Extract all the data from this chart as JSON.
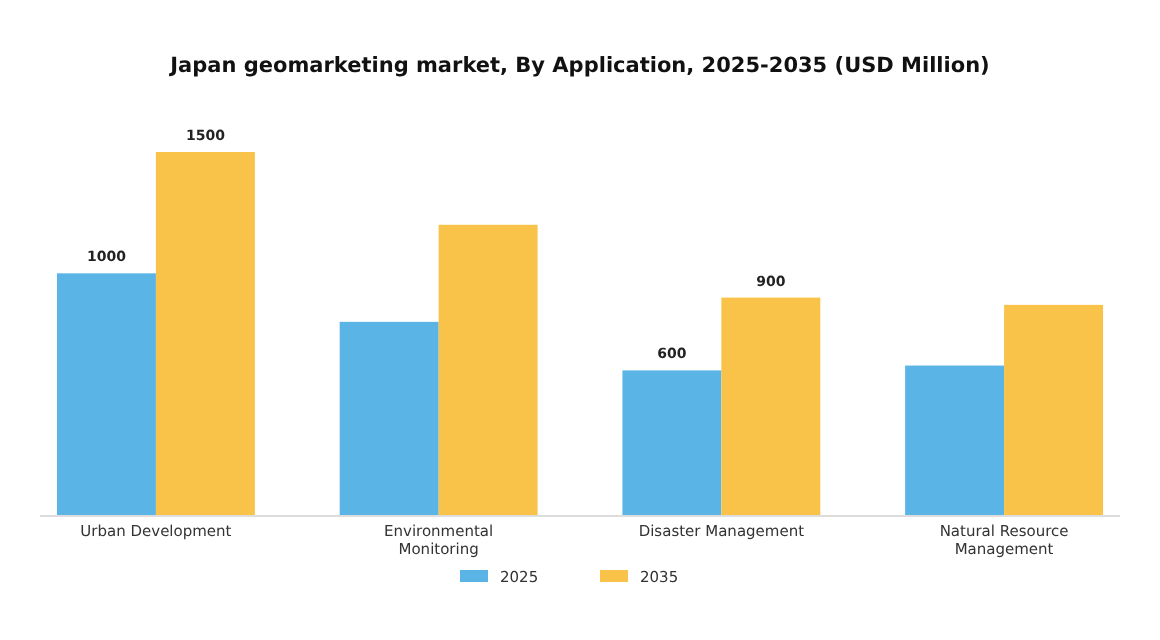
{
  "chart_data": {
    "type": "bar",
    "title": "Japan geomarketing market, By Application, 2025-2035 (USD Million)",
    "categories": [
      "Urban Development",
      "Environmental Monitoring",
      "Disaster Management",
      "Natural Resource Management"
    ],
    "series": [
      {
        "name": "2025",
        "color": "#5ab4e6",
        "values": [
          1000,
          800,
          600,
          620
        ],
        "value_labels": [
          "1000",
          null,
          "600",
          null
        ]
      },
      {
        "name": "2035",
        "color": "#f9c34a",
        "values": [
          1500,
          1200,
          900,
          870
        ],
        "value_labels": [
          "1500",
          null,
          "900",
          null
        ]
      }
    ],
    "legend": "bottom"
  }
}
